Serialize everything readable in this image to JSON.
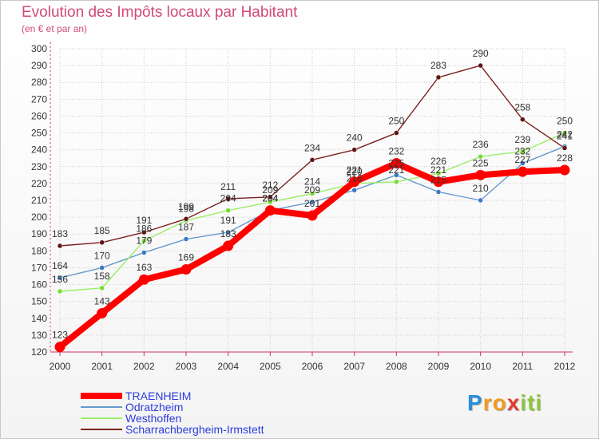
{
  "header": {
    "title": "Evolution des Impôts locaux par Habitant",
    "subtitle": "(en € et par an)"
  },
  "colors": {
    "title": "#d14a78",
    "axis": "#cc3366",
    "grid": "#cccccc",
    "label": "#333333"
  },
  "chart_data": {
    "type": "line",
    "title": "Evolution des Impôts locaux par Habitant",
    "subtitle": "(en € et par an)",
    "xlabel": "",
    "ylabel": "",
    "ylim": [
      120,
      300
    ],
    "yticks": [
      120,
      130,
      140,
      150,
      160,
      170,
      180,
      190,
      200,
      210,
      220,
      230,
      240,
      250,
      260,
      270,
      280,
      290,
      300
    ],
    "grid": true,
    "categories": [
      "2000",
      "2001",
      "2002",
      "2003",
      "2004",
      "2005",
      "2006",
      "2007",
      "2008",
      "2009",
      "2010",
      "2011",
      "2012"
    ],
    "series": [
      {
        "name": "TRAENHEIM",
        "color": "#ff0000",
        "marker": "#ff0000",
        "style": "thick",
        "values": [
          123,
          143,
          163,
          169,
          183,
          204,
          201,
          221,
          232,
          221,
          225,
          227,
          228
        ]
      },
      {
        "name": "Odratzheim",
        "color": "#6699cc",
        "marker": "#3a78c8",
        "style": "thin",
        "values": [
          164,
          170,
          179,
          187,
          191,
          204,
          209,
          216,
          225,
          215,
          210,
          232,
          242
        ]
      },
      {
        "name": "Westhoffen",
        "color": "#99ee66",
        "marker": "#77dd33",
        "style": "thin",
        "values": [
          156,
          158,
          186,
          198,
          204,
          209,
          214,
          220,
          221,
          226,
          236,
          239,
          250
        ]
      },
      {
        "name": "Scharrachbergheim-Irmstett",
        "color": "#7b2020",
        "marker": "#601515",
        "style": "thin",
        "values": [
          183,
          185,
          191,
          199,
          211,
          212,
          234,
          240,
          250,
          283,
          290,
          258,
          241
        ]
      }
    ]
  },
  "legend": {
    "items": [
      {
        "label": "TRAENHEIM",
        "color": "#ff0000"
      },
      {
        "label": "Odratzheim",
        "color": "#6699cc"
      },
      {
        "label": "Westhoffen",
        "color": "#99ee66"
      },
      {
        "label": "Scharrachbergheim-Irmstett",
        "color": "#7b2020"
      }
    ]
  },
  "logo": {
    "letters": [
      "P",
      "r",
      "o",
      "x",
      "i",
      "t",
      "i"
    ],
    "colors": [
      "#2a8fd8",
      "#f39a1d",
      "#f39a1d",
      "#e23b2e",
      "#8cc63f",
      "#8cc63f",
      "#8cc63f"
    ]
  }
}
